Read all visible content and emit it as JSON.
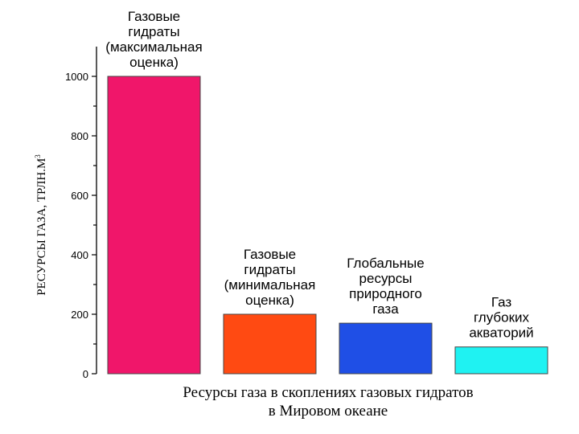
{
  "chart_data": {
    "type": "bar",
    "categories": [
      [
        "Газовые",
        "гидраты",
        "(максимальная",
        "оценка)"
      ],
      [
        "Газовые",
        "гидраты",
        "(минимальная",
        "оценка)"
      ],
      [
        "Глобальные",
        "ресурсы",
        "природного",
        "газа"
      ],
      [
        "Газ",
        "глубоких",
        "акваторий"
      ]
    ],
    "values": [
      1000,
      200,
      170,
      90
    ],
    "colors": [
      "#f0166a",
      "#ff4a12",
      "#1f4fe6",
      "#1ff2f2"
    ],
    "ylim": [
      0,
      1100
    ],
    "yticks": [
      0,
      200,
      400,
      600,
      800,
      1000
    ],
    "ylabel": "РЕСУРСЫ ГАЗА, ТРЛН.М",
    "ylabel_sup": "3",
    "xlabel": [
      "Ресурсы газа в скоплениях газовых гидратов",
      "в Мировом океане"
    ]
  }
}
